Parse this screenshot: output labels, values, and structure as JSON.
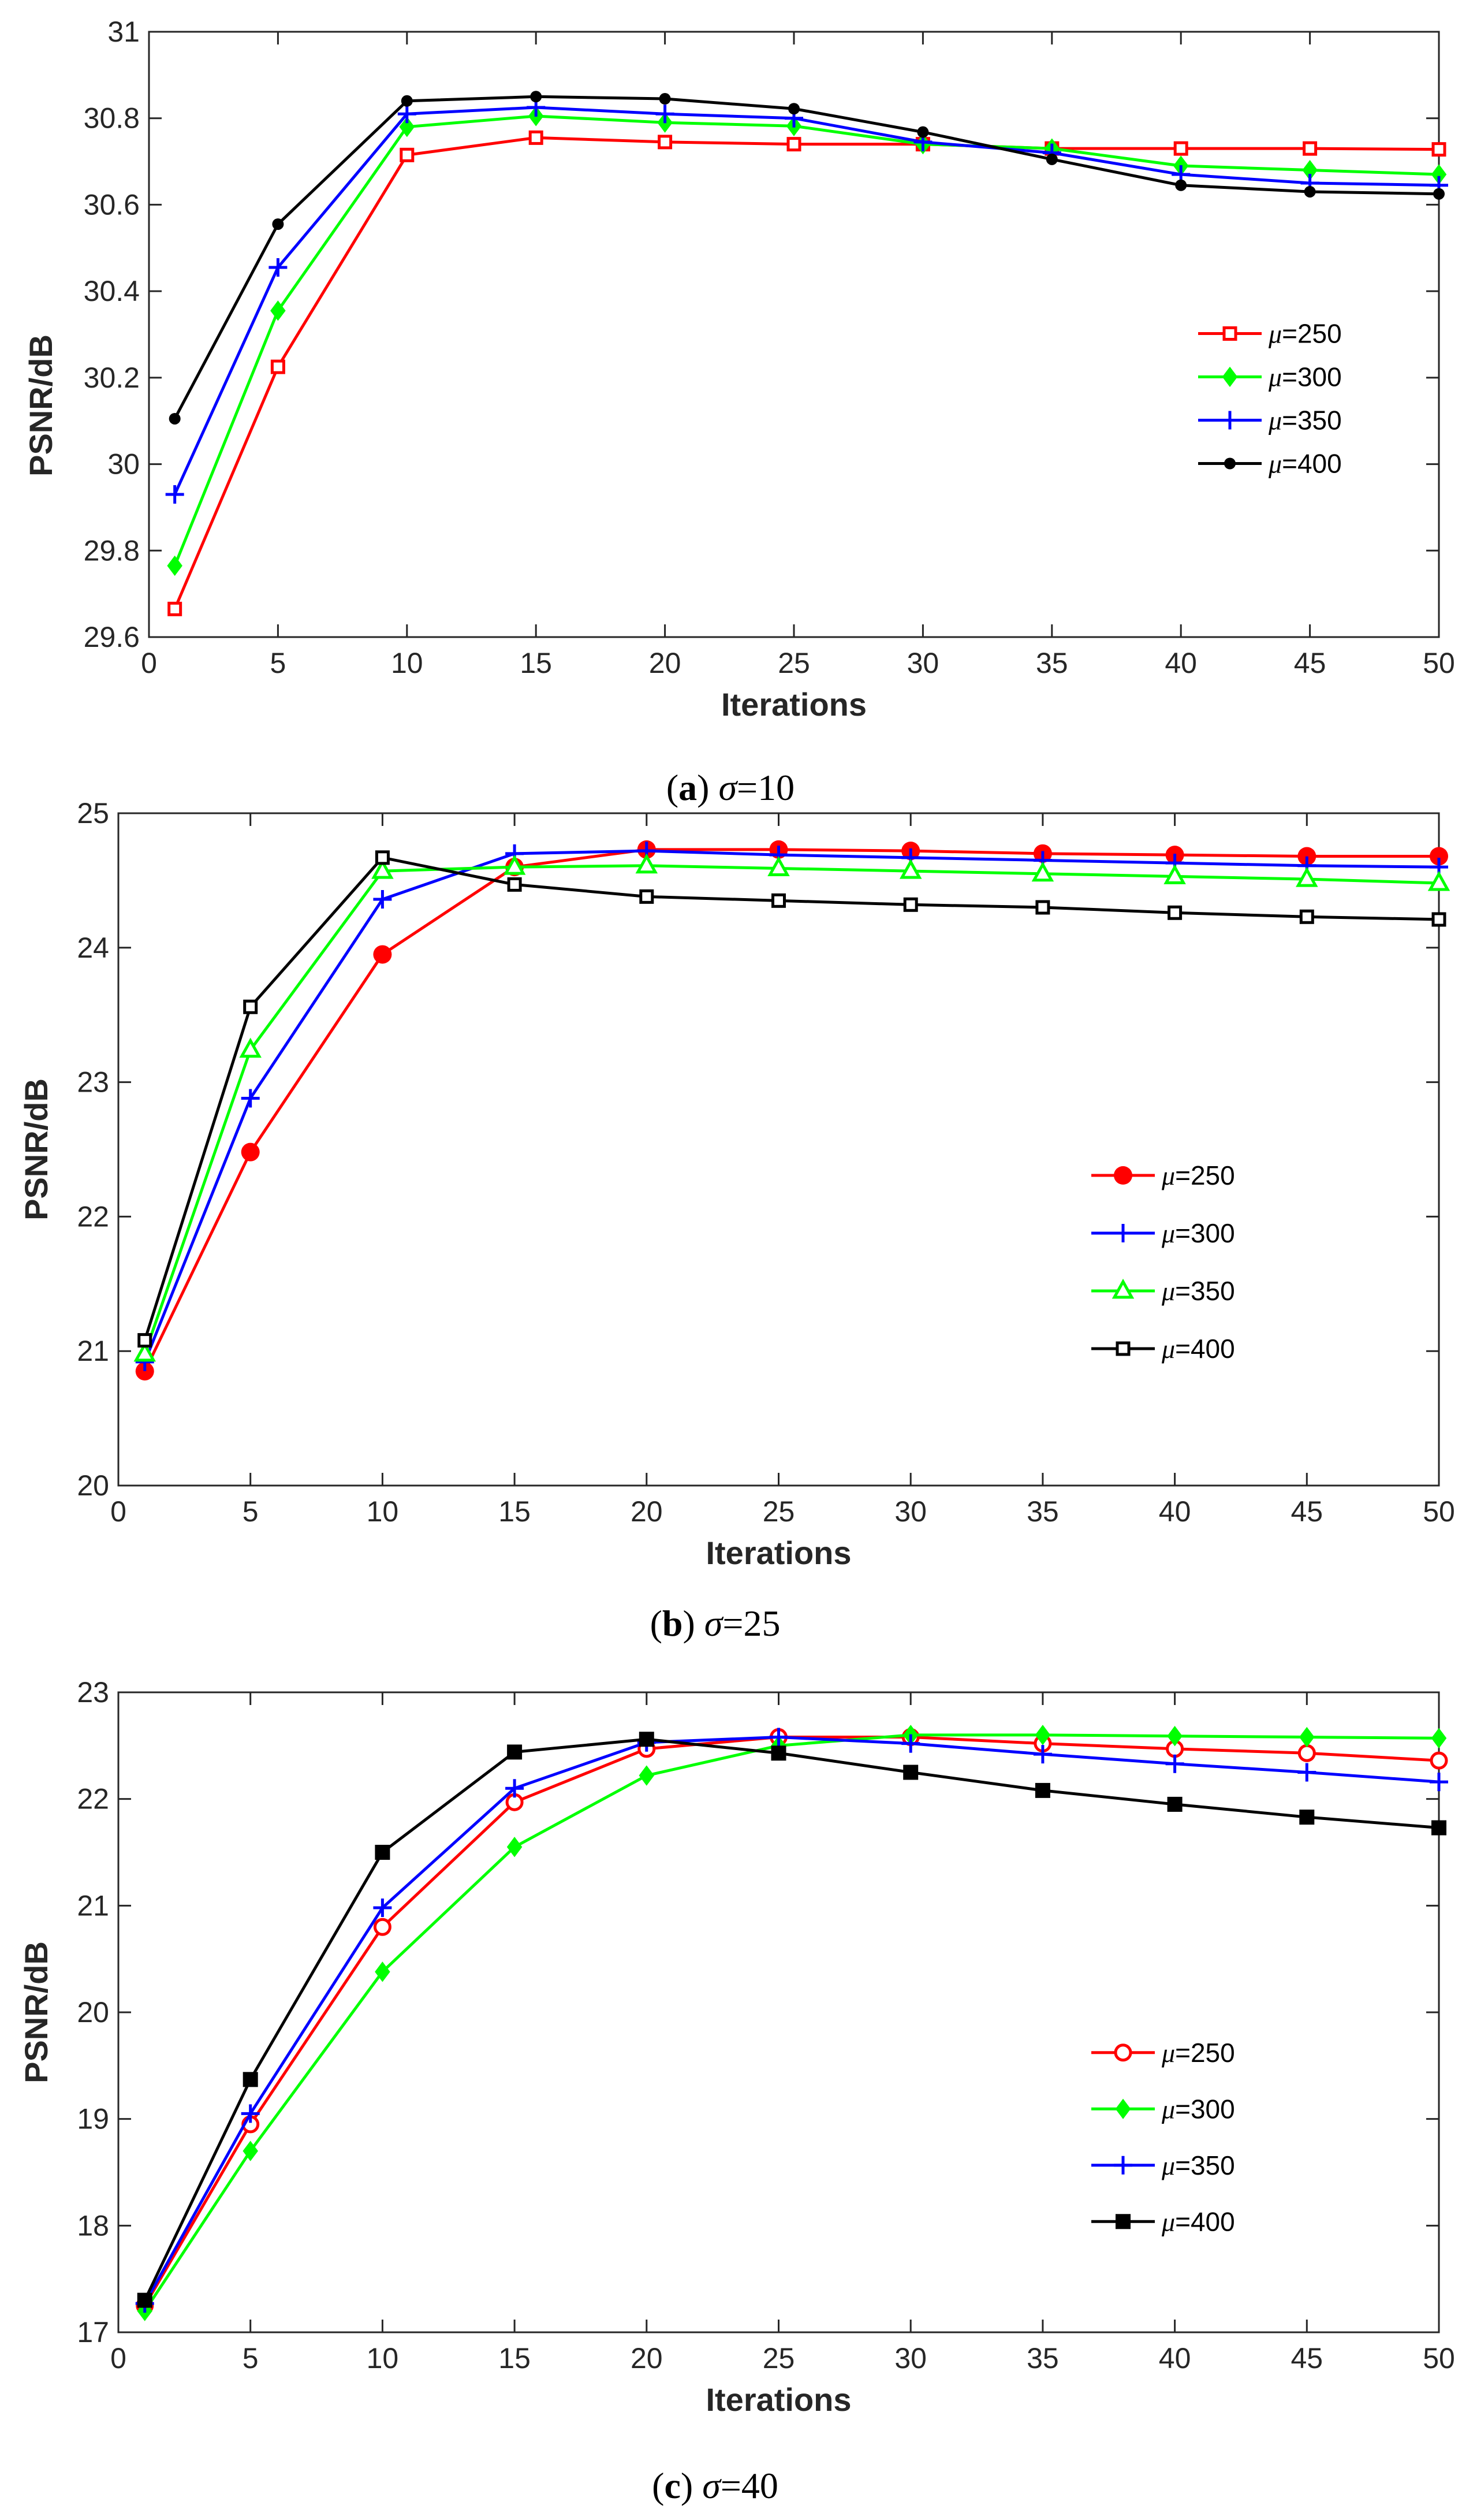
{
  "chart_data": [
    {
      "type": "line",
      "caption": {
        "letter": "a",
        "symbol": "σ",
        "rest": "=10"
      },
      "xlabel": "Iterations",
      "ylabel": "PSNR/dB",
      "xlim": [
        0,
        50
      ],
      "ylim": [
        29.6,
        31
      ],
      "xticks": [
        "0",
        "5",
        "10",
        "15",
        "20",
        "25",
        "30",
        "35",
        "40",
        "45",
        "50"
      ],
      "yticks": [
        "29.6",
        "29.8",
        "30",
        "30.2",
        "30.4",
        "30.6",
        "30.8",
        "31"
      ],
      "grid": false,
      "legend_position": "center-right",
      "x": [
        1,
        5,
        10,
        15,
        20,
        25,
        30,
        35,
        40,
        45,
        50
      ],
      "series": [
        {
          "name": "μ=250",
          "prefix": "μ",
          "suffix": "=250",
          "color": "#ff0000",
          "marker": "square-open",
          "values": [
            29.665,
            30.225,
            30.715,
            30.755,
            30.745,
            30.74,
            30.74,
            30.73,
            30.73,
            30.73,
            30.728
          ]
        },
        {
          "name": "μ=300",
          "prefix": "μ",
          "suffix": "=300",
          "color": "#00ff00",
          "marker": "diamond-filled",
          "values": [
            29.765,
            30.355,
            30.78,
            30.805,
            30.79,
            30.782,
            30.74,
            30.73,
            30.69,
            30.68,
            30.67
          ]
        },
        {
          "name": "μ=350",
          "prefix": "μ",
          "suffix": "=350",
          "color": "#0000ff",
          "marker": "plus",
          "values": [
            29.93,
            30.455,
            30.81,
            30.825,
            30.81,
            30.8,
            30.745,
            30.72,
            30.67,
            30.65,
            30.645
          ]
        },
        {
          "name": "μ=400",
          "prefix": "μ",
          "suffix": "=400",
          "color": "#000000",
          "marker": "dot",
          "values": [
            30.105,
            30.555,
            30.84,
            30.85,
            30.845,
            30.822,
            30.768,
            30.705,
            30.645,
            30.63,
            30.625
          ]
        }
      ]
    },
    {
      "type": "line",
      "caption": {
        "letter": "b",
        "symbol": "σ",
        "rest": "=25"
      },
      "xlabel": "Iterations",
      "ylabel": "PSNR/dB",
      "xlim": [
        0,
        50
      ],
      "ylim": [
        20,
        25
      ],
      "xticks": [
        "0",
        "5",
        "10",
        "15",
        "20",
        "25",
        "30",
        "35",
        "40",
        "45",
        "50"
      ],
      "yticks": [
        "20",
        "21",
        "22",
        "23",
        "24",
        "25"
      ],
      "grid": false,
      "legend_position": "center-right",
      "x": [
        1,
        5,
        10,
        15,
        20,
        25,
        30,
        35,
        40,
        45,
        50
      ],
      "series": [
        {
          "name": "μ=250",
          "prefix": "μ",
          "suffix": "=250",
          "color": "#ff0000",
          "marker": "dot-large",
          "values": [
            20.85,
            22.48,
            23.95,
            24.6,
            24.73,
            24.73,
            24.72,
            24.7,
            24.69,
            24.68,
            24.68
          ]
        },
        {
          "name": "μ=300",
          "prefix": "μ",
          "suffix": "=300",
          "color": "#0000ff",
          "marker": "plus",
          "values": [
            20.92,
            22.88,
            24.36,
            24.7,
            24.72,
            24.69,
            24.67,
            24.65,
            24.63,
            24.61,
            24.6
          ]
        },
        {
          "name": "μ=350",
          "prefix": "μ",
          "suffix": "=350",
          "color": "#00ff00",
          "marker": "triangle-open",
          "values": [
            20.98,
            23.24,
            24.57,
            24.6,
            24.61,
            24.59,
            24.57,
            24.55,
            24.53,
            24.51,
            24.48
          ]
        },
        {
          "name": "μ=400",
          "prefix": "μ",
          "suffix": "=400",
          "color": "#000000",
          "marker": "square-open",
          "values": [
            21.08,
            23.56,
            24.67,
            24.47,
            24.38,
            24.35,
            24.32,
            24.3,
            24.26,
            24.23,
            24.21
          ]
        }
      ]
    },
    {
      "type": "line",
      "caption": {
        "letter": "c",
        "symbol": "σ",
        "rest": "=40"
      },
      "xlabel": "Iterations",
      "ylabel": "PSNR/dB",
      "xlim": [
        0,
        50
      ],
      "ylim": [
        17,
        23
      ],
      "xticks": [
        "0",
        "5",
        "10",
        "15",
        "20",
        "25",
        "30",
        "35",
        "40",
        "45",
        "50"
      ],
      "yticks": [
        "17",
        "18",
        "19",
        "20",
        "21",
        "22",
        "23"
      ],
      "grid": false,
      "legend_position": "center-right",
      "x": [
        1,
        5,
        10,
        15,
        20,
        25,
        30,
        35,
        40,
        45,
        50
      ],
      "series": [
        {
          "name": "μ=250",
          "prefix": "μ",
          "suffix": "=250",
          "color": "#ff0000",
          "marker": "circle-open",
          "values": [
            17.25,
            18.95,
            20.8,
            21.97,
            22.47,
            22.58,
            22.58,
            22.52,
            22.47,
            22.43,
            22.36
          ]
        },
        {
          "name": "μ=300",
          "prefix": "μ",
          "suffix": "=300",
          "color": "#00ff00",
          "marker": "diamond-filled",
          "values": [
            17.2,
            18.7,
            20.38,
            21.55,
            22.22,
            22.5,
            22.6,
            22.6,
            22.59,
            22.58,
            22.57
          ]
        },
        {
          "name": "μ=350",
          "prefix": "μ",
          "suffix": "=350",
          "color": "#0000ff",
          "marker": "plus",
          "values": [
            17.27,
            19.05,
            20.98,
            22.1,
            22.53,
            22.58,
            22.52,
            22.42,
            22.33,
            22.25,
            22.16
          ]
        },
        {
          "name": "μ=400",
          "prefix": "μ",
          "suffix": "=400",
          "color": "#000000",
          "marker": "square-filled",
          "values": [
            17.3,
            19.37,
            21.5,
            22.44,
            22.56,
            22.43,
            22.25,
            22.08,
            21.95,
            21.83,
            21.73
          ]
        }
      ]
    }
  ]
}
